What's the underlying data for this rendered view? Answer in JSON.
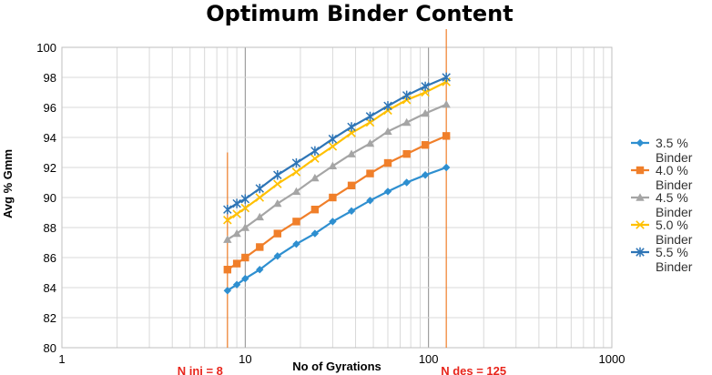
{
  "chart_data": {
    "type": "line",
    "title": "Optimum Binder Content",
    "xlabel": "No of Gyrations",
    "ylabel": "Avg % Gmm",
    "xscale": "log",
    "xlim": [
      1,
      1000
    ],
    "ylim": [
      80,
      100
    ],
    "x_ticks": [
      "1",
      "10",
      "100",
      "1000"
    ],
    "y_ticks": [
      "80",
      "82",
      "84",
      "86",
      "88",
      "90",
      "92",
      "94",
      "96",
      "98",
      "100"
    ],
    "grid": true,
    "legend_position": "right",
    "x": [
      8,
      9,
      10,
      12,
      15,
      19,
      24,
      30,
      38,
      48,
      60,
      76,
      96,
      125
    ],
    "series": [
      {
        "name": [
          "3.5 %",
          "Binder"
        ],
        "color": "#2e8fd0",
        "marker": "diamond",
        "values": [
          83.8,
          84.2,
          84.6,
          85.2,
          86.1,
          86.9,
          87.6,
          88.4,
          89.1,
          89.8,
          90.4,
          91.0,
          91.5,
          92.0
        ]
      },
      {
        "name": [
          "4.0 %",
          "Binder"
        ],
        "color": "#f07f2a",
        "marker": "square",
        "values": [
          85.2,
          85.6,
          86.0,
          86.7,
          87.6,
          88.4,
          89.2,
          90.0,
          90.8,
          91.6,
          92.3,
          92.9,
          93.5,
          94.1
        ]
      },
      {
        "name": [
          "4.5 %",
          "Binder"
        ],
        "color": "#a5a5a5",
        "marker": "triangle",
        "values": [
          87.2,
          87.6,
          88.0,
          88.7,
          89.6,
          90.4,
          91.3,
          92.1,
          92.9,
          93.6,
          94.4,
          95.0,
          95.6,
          96.2
        ]
      },
      {
        "name": [
          "5.0 %",
          "Binder"
        ],
        "color": "#ffc000",
        "marker": "x",
        "values": [
          88.5,
          88.9,
          89.3,
          90.0,
          90.9,
          91.7,
          92.6,
          93.4,
          94.3,
          95.0,
          95.8,
          96.5,
          97.0,
          97.7
        ]
      },
      {
        "name": [
          "5.5 %",
          "Binder"
        ],
        "color": "#2e75b6",
        "marker": "star",
        "values": [
          89.2,
          89.6,
          89.9,
          90.6,
          91.5,
          92.3,
          93.1,
          93.9,
          94.7,
          95.4,
          96.1,
          96.8,
          97.4,
          98.0
        ]
      }
    ],
    "reference_lines": [
      {
        "x": 8,
        "label": "N ini = 8",
        "color": "#f07f2a",
        "y_top": 93
      },
      {
        "x": 125,
        "label": "N des = 125",
        "color": "#f07f2a",
        "y_top": 100
      }
    ]
  }
}
